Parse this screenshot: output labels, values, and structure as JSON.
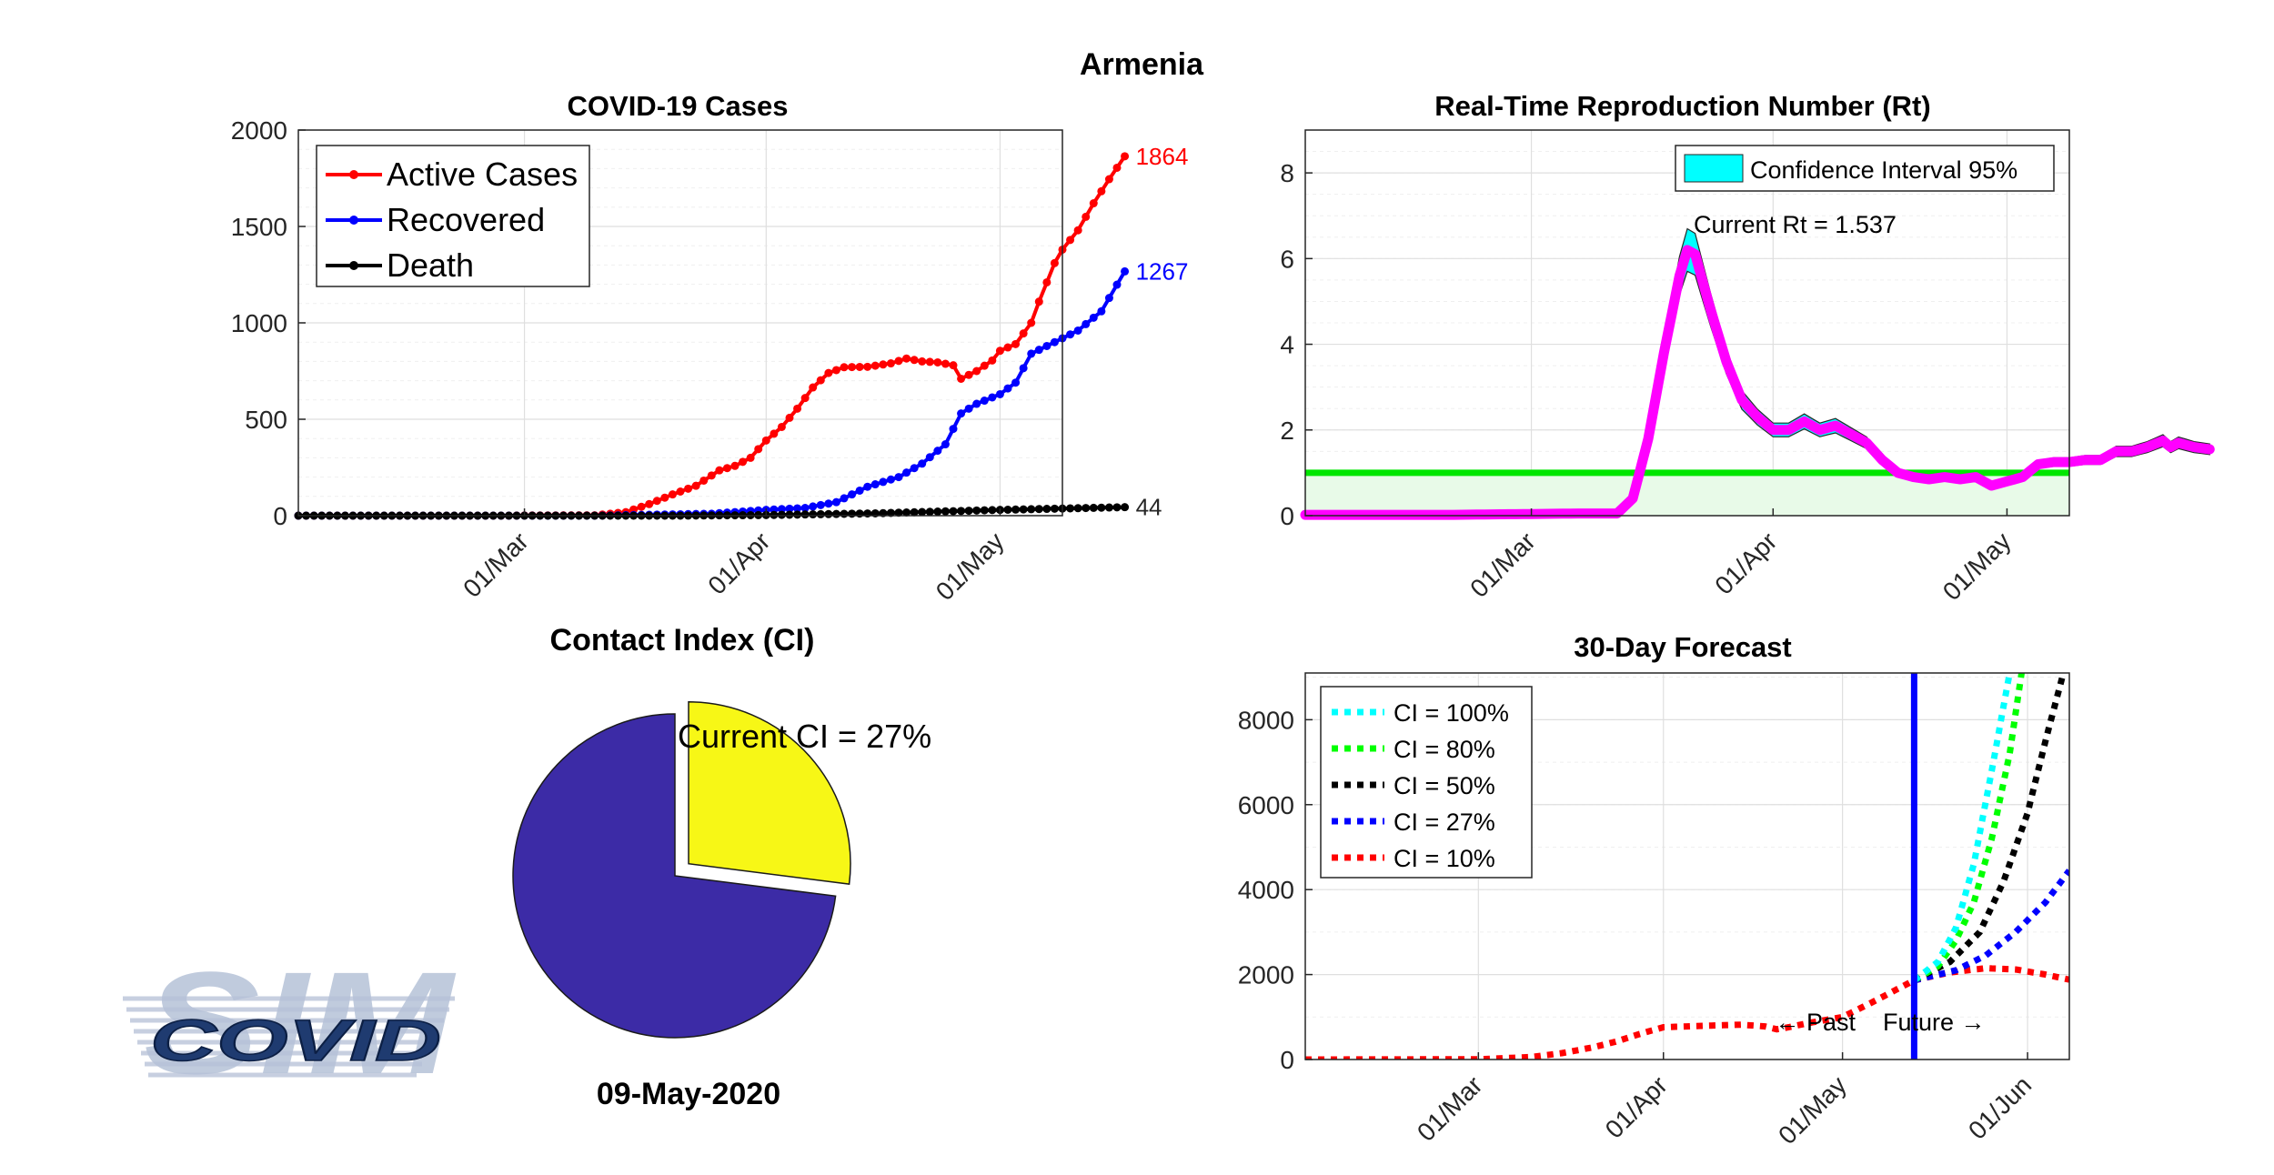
{
  "figure": {
    "title": "Armenia",
    "date_label": "09-May-2020"
  },
  "logo": {
    "text": "COVID",
    "big_text": "SIM"
  },
  "chart_data": [
    {
      "id": "cases",
      "type": "line",
      "title": "COVID-19 Cases",
      "xlabel": "",
      "ylabel": "",
      "x_ticks": [
        "01/Mar",
        "01/Apr",
        "01/May"
      ],
      "y_ticks": [
        0,
        500,
        1000,
        1500,
        2000
      ],
      "ylim": [
        0,
        2000
      ],
      "x_range_dates": [
        "2020-02-01",
        "2020-05-09"
      ],
      "grid": true,
      "legend_position": "top-left",
      "series": [
        {
          "name": "Active Cases",
          "color": "#ff0000",
          "end_label": "1864",
          "keypoints": [
            [
              "2020-02-01",
              0
            ],
            [
              "2020-02-28",
              0
            ],
            [
              "2020-03-01",
              1
            ],
            [
              "2020-03-10",
              2
            ],
            [
              "2020-03-14",
              18
            ],
            [
              "2020-03-17",
              60
            ],
            [
              "2020-03-20",
              110
            ],
            [
              "2020-03-23",
              155
            ],
            [
              "2020-03-26",
              235
            ],
            [
              "2020-03-28",
              258
            ],
            [
              "2020-03-30",
              300
            ],
            [
              "2020-04-01",
              390
            ],
            [
              "2020-04-03",
              460
            ],
            [
              "2020-04-05",
              555
            ],
            [
              "2020-04-07",
              665
            ],
            [
              "2020-04-09",
              740
            ],
            [
              "2020-04-11",
              770
            ],
            [
              "2020-04-14",
              772
            ],
            [
              "2020-04-17",
              790
            ],
            [
              "2020-04-19",
              815
            ],
            [
              "2020-04-21",
              800
            ],
            [
              "2020-04-23",
              795
            ],
            [
              "2020-04-25",
              780
            ],
            [
              "2020-04-26",
              710
            ],
            [
              "2020-04-28",
              750
            ],
            [
              "2020-04-30",
              805
            ],
            [
              "2020-05-01",
              855
            ],
            [
              "2020-05-03",
              890
            ],
            [
              "2020-05-05",
              1000
            ],
            [
              "2020-05-06",
              1110
            ],
            [
              "2020-05-07",
              1210
            ],
            [
              "2020-05-08",
              1310
            ],
            [
              "2020-05-09",
              1380
            ],
            [
              "2020-05-11",
              1480
            ],
            [
              "2020-05-13",
              1620
            ],
            [
              "2020-05-15",
              1745
            ],
            [
              "2020-05-17",
              1864
            ]
          ]
        },
        {
          "name": "Recovered",
          "color": "#0000ff",
          "end_label": "1267",
          "keypoints": [
            [
              "2020-02-01",
              0
            ],
            [
              "2020-03-10",
              0
            ],
            [
              "2020-03-25",
              10
            ],
            [
              "2020-04-01",
              30
            ],
            [
              "2020-04-06",
              40
            ],
            [
              "2020-04-10",
              70
            ],
            [
              "2020-04-14",
              150
            ],
            [
              "2020-04-18",
              200
            ],
            [
              "2020-04-21",
              270
            ],
            [
              "2020-04-24",
              370
            ],
            [
              "2020-04-26",
              530
            ],
            [
              "2020-04-28",
              580
            ],
            [
              "2020-05-01",
              630
            ],
            [
              "2020-05-03",
              690
            ],
            [
              "2020-05-05",
              840
            ],
            [
              "2020-05-08",
              900
            ],
            [
              "2020-05-11",
              960
            ],
            [
              "2020-05-14",
              1060
            ],
            [
              "2020-05-17",
              1267
            ]
          ]
        },
        {
          "name": "Death",
          "color": "#000000",
          "end_label": "44",
          "keypoints": [
            [
              "2020-02-01",
              0
            ],
            [
              "2020-03-20",
              0
            ],
            [
              "2020-04-01",
              3
            ],
            [
              "2020-04-15",
              12
            ],
            [
              "2020-05-01",
              30
            ],
            [
              "2020-05-17",
              44
            ]
          ]
        }
      ]
    },
    {
      "id": "rt",
      "type": "line",
      "title": "Real-Time Reproduction Number (Rt)",
      "xlabel": "",
      "ylabel": "",
      "x_ticks": [
        "01/Mar",
        "01/Apr",
        "01/May"
      ],
      "y_ticks": [
        0,
        2,
        4,
        6,
        8
      ],
      "ylim": [
        0,
        9
      ],
      "x_range_dates": [
        "2020-02-01",
        "2020-05-09"
      ],
      "grid": true,
      "legend_position": "top-right",
      "legend_entry": "Confidence Interval 95%",
      "annotation": "Current Rt = 1.537",
      "threshold": {
        "value": 1,
        "color": "#00e600"
      },
      "series": [
        {
          "name": "Rt",
          "color": "#ff00ff",
          "keypoints": [
            [
              "2020-02-01",
              0.02
            ],
            [
              "2020-02-20",
              0.02
            ],
            [
              "2020-03-07",
              0.05
            ],
            [
              "2020-03-12",
              0.05
            ],
            [
              "2020-03-14",
              0.4
            ],
            [
              "2020-03-16",
              1.8
            ],
            [
              "2020-03-18",
              3.8
            ],
            [
              "2020-03-20",
              5.6
            ],
            [
              "2020-03-21",
              6.2
            ],
            [
              "2020-03-22",
              6.1
            ],
            [
              "2020-03-24",
              4.8
            ],
            [
              "2020-03-26",
              3.6
            ],
            [
              "2020-03-28",
              2.7
            ],
            [
              "2020-03-30",
              2.3
            ],
            [
              "2020-04-01",
              2.0
            ],
            [
              "2020-04-03",
              2.0
            ],
            [
              "2020-04-05",
              2.2
            ],
            [
              "2020-04-07",
              2.0
            ],
            [
              "2020-04-09",
              2.1
            ],
            [
              "2020-04-11",
              1.9
            ],
            [
              "2020-04-13",
              1.7
            ],
            [
              "2020-04-15",
              1.3
            ],
            [
              "2020-04-17",
              1.0
            ],
            [
              "2020-04-19",
              0.9
            ],
            [
              "2020-04-21",
              0.85
            ],
            [
              "2020-04-23",
              0.9
            ],
            [
              "2020-04-25",
              0.85
            ],
            [
              "2020-04-27",
              0.9
            ],
            [
              "2020-04-29",
              0.7
            ],
            [
              "2020-05-01",
              0.8
            ],
            [
              "2020-05-03",
              0.9
            ],
            [
              "2020-05-05",
              1.2
            ],
            [
              "2020-05-07",
              1.25
            ],
            [
              "2020-05-09",
              1.25
            ],
            [
              "2020-05-11",
              1.3
            ],
            [
              "2020-05-13",
              1.3
            ],
            [
              "2020-05-15",
              1.5
            ],
            [
              "2020-05-17",
              1.5
            ],
            [
              "2020-05-19",
              1.6
            ],
            [
              "2020-05-21",
              1.75
            ],
            [
              "2020-05-22",
              1.6
            ],
            [
              "2020-05-23",
              1.7
            ],
            [
              "2020-05-25",
              1.6
            ],
            [
              "2020-05-27",
              1.55
            ]
          ]
        }
      ]
    },
    {
      "id": "ci",
      "type": "pie",
      "title": "Contact Index (CI)",
      "annotation": "Current CI = 27%",
      "slices": [
        {
          "label": "Current CI",
          "value": 27,
          "color": "#f7f716",
          "exploded": true
        },
        {
          "label": "",
          "value": 73,
          "color": "#3c2ba6",
          "exploded": false
        }
      ]
    },
    {
      "id": "forecast",
      "type": "line",
      "title": "30-Day Forecast",
      "xlabel": "",
      "ylabel": "",
      "x_ticks": [
        "01/Mar",
        "01/Apr",
        "01/May",
        "01/Jun"
      ],
      "y_ticks": [
        0,
        2000,
        4000,
        6000,
        8000
      ],
      "ylim": [
        0,
        9100
      ],
      "x_range_dates": [
        "2020-02-01",
        "2020-06-08"
      ],
      "grid": true,
      "legend_position": "top-left",
      "divider": {
        "date": "2020-05-13",
        "color": "#0000ff",
        "past_label": "← Past",
        "future_label": "Future →"
      },
      "past": [
        [
          "2020-02-01",
          0
        ],
        [
          "2020-03-01",
          5
        ],
        [
          "2020-03-10",
          60
        ],
        [
          "2020-03-15",
          150
        ],
        [
          "2020-03-20",
          280
        ],
        [
          "2020-03-24",
          420
        ],
        [
          "2020-03-28",
          600
        ],
        [
          "2020-04-01",
          760
        ],
        [
          "2020-04-07",
          790
        ],
        [
          "2020-04-14",
          820
        ],
        [
          "2020-04-18",
          780
        ],
        [
          "2020-04-20",
          710
        ],
        [
          "2020-04-22",
          760
        ],
        [
          "2020-04-25",
          850
        ],
        [
          "2020-05-01",
          1000
        ],
        [
          "2020-05-06",
          1350
        ],
        [
          "2020-05-13",
          1864
        ]
      ],
      "series": [
        {
          "name": "CI = 100%",
          "color": "#00ffff",
          "keypoints": [
            [
              "2020-05-13",
              1864
            ],
            [
              "2020-05-17",
              2300
            ],
            [
              "2020-05-20",
              3100
            ],
            [
              "2020-05-23",
              4600
            ],
            [
              "2020-05-26",
              6800
            ],
            [
              "2020-05-29",
              9100
            ]
          ]
        },
        {
          "name": "CI = 80%",
          "color": "#00ff00",
          "keypoints": [
            [
              "2020-05-13",
              1864
            ],
            [
              "2020-05-17",
              2200
            ],
            [
              "2020-05-20",
              2800
            ],
            [
              "2020-05-23",
              3700
            ],
            [
              "2020-05-26",
              5200
            ],
            [
              "2020-05-29",
              7200
            ],
            [
              "2020-05-31",
              9100
            ]
          ]
        },
        {
          "name": "CI = 50%",
          "color": "#000000",
          "keypoints": [
            [
              "2020-05-13",
              1864
            ],
            [
              "2020-05-19",
              2300
            ],
            [
              "2020-05-24",
              3000
            ],
            [
              "2020-05-28",
              4200
            ],
            [
              "2020-06-01",
              5800
            ],
            [
              "2020-06-04",
              7500
            ],
            [
              "2020-06-07",
              9100
            ]
          ]
        },
        {
          "name": "CI = 27%",
          "color": "#0000ff",
          "keypoints": [
            [
              "2020-05-13",
              1864
            ],
            [
              "2020-05-20",
              2100
            ],
            [
              "2020-05-25",
              2450
            ],
            [
              "2020-05-30",
              3000
            ],
            [
              "2020-06-04",
              3700
            ],
            [
              "2020-06-08",
              4450
            ]
          ]
        },
        {
          "name": "CI = 10%",
          "color": "#ff0000",
          "keypoints": [
            [
              "2020-05-13",
              1864
            ],
            [
              "2020-05-19",
              2050
            ],
            [
              "2020-05-25",
              2150
            ],
            [
              "2020-05-30",
              2120
            ],
            [
              "2020-06-04",
              2000
            ],
            [
              "2020-06-08",
              1880
            ]
          ]
        }
      ]
    }
  ]
}
